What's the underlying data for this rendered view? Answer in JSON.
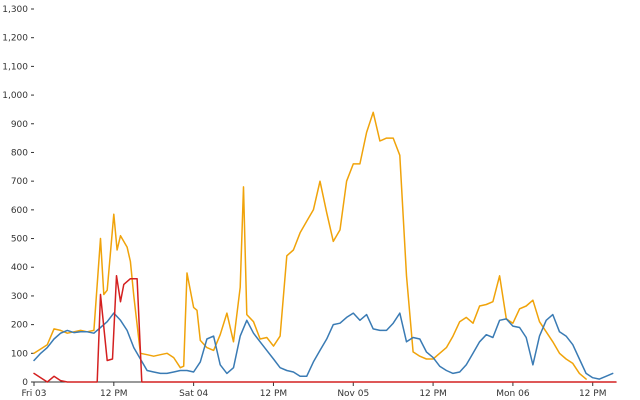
{
  "chart_data": {
    "type": "line",
    "title": "",
    "xlabel": "",
    "ylabel": "",
    "ylim": [
      0,
      1300
    ],
    "yticks": [
      0,
      100,
      200,
      300,
      400,
      500,
      600,
      700,
      800,
      900,
      1000,
      1100,
      1200,
      1300
    ],
    "ytick_labels": [
      "0",
      "100",
      "200",
      "300",
      "400",
      "500",
      "600",
      "700",
      "800",
      "900",
      "1,000",
      "1,100",
      "1,200",
      "1,300"
    ],
    "x_unit": "hours since first x-axis tick label",
    "xlim": [
      0,
      87.5
    ],
    "xticks": [
      0,
      12,
      24,
      36,
      48,
      60,
      72,
      84
    ],
    "xtick_labels": [
      "Fri 03",
      "12 PM",
      "Sat 04",
      "12 PM",
      "Nov 05",
      "12 PM",
      "Mon 06",
      "12 PM"
    ],
    "grid": false,
    "legend": "none",
    "series": [
      {
        "color": "#f0a30a",
        "points": [
          [
            0,
            100
          ],
          [
            1,
            115
          ],
          [
            2,
            130
          ],
          [
            3,
            185
          ],
          [
            4,
            180
          ],
          [
            5,
            170
          ],
          [
            6,
            175
          ],
          [
            7,
            180
          ],
          [
            8,
            175
          ],
          [
            9,
            180
          ],
          [
            10,
            500
          ],
          [
            10.5,
            305
          ],
          [
            11,
            320
          ],
          [
            12,
            585
          ],
          [
            12.5,
            460
          ],
          [
            13,
            510
          ],
          [
            14,
            470
          ],
          [
            14.5,
            420
          ],
          [
            15,
            300
          ],
          [
            16,
            100
          ],
          [
            17,
            95
          ],
          [
            18,
            90
          ],
          [
            19,
            95
          ],
          [
            20,
            100
          ],
          [
            21,
            85
          ],
          [
            22,
            50
          ],
          [
            22.5,
            55
          ],
          [
            23,
            380
          ],
          [
            24,
            260
          ],
          [
            24.5,
            250
          ],
          [
            25,
            145
          ],
          [
            26,
            120
          ],
          [
            27,
            110
          ],
          [
            28,
            165
          ],
          [
            29,
            240
          ],
          [
            30,
            140
          ],
          [
            31,
            330
          ],
          [
            31.5,
            680
          ],
          [
            32,
            235
          ],
          [
            33,
            210
          ],
          [
            34,
            150
          ],
          [
            35,
            155
          ],
          [
            36,
            125
          ],
          [
            37,
            160
          ],
          [
            38,
            440
          ],
          [
            39,
            460
          ],
          [
            40,
            520
          ],
          [
            41,
            560
          ],
          [
            42,
            600
          ],
          [
            43,
            700
          ],
          [
            44,
            590
          ],
          [
            45,
            490
          ],
          [
            46,
            530
          ],
          [
            47,
            700
          ],
          [
            48,
            760
          ],
          [
            49,
            760
          ],
          [
            50,
            870
          ],
          [
            51,
            940
          ],
          [
            52,
            840
          ],
          [
            53,
            850
          ],
          [
            54,
            850
          ],
          [
            55,
            790
          ],
          [
            56,
            370
          ],
          [
            57,
            105
          ],
          [
            58,
            90
          ],
          [
            59,
            80
          ],
          [
            60,
            80
          ],
          [
            61,
            100
          ],
          [
            62,
            120
          ],
          [
            63,
            160
          ],
          [
            64,
            210
          ],
          [
            65,
            225
          ],
          [
            66,
            205
          ],
          [
            67,
            265
          ],
          [
            68,
            270
          ],
          [
            69,
            280
          ],
          [
            70,
            370
          ],
          [
            71,
            220
          ],
          [
            72,
            205
          ],
          [
            73,
            255
          ],
          [
            74,
            265
          ],
          [
            75,
            285
          ],
          [
            76,
            210
          ],
          [
            77,
            175
          ],
          [
            78,
            140
          ],
          [
            79,
            100
          ],
          [
            80,
            80
          ],
          [
            81,
            65
          ],
          [
            82,
            30
          ],
          [
            83,
            10
          ]
        ]
      },
      {
        "color": "#3a7bb4",
        "points": [
          [
            0,
            75
          ],
          [
            1,
            100
          ],
          [
            2,
            120
          ],
          [
            3,
            150
          ],
          [
            4,
            170
          ],
          [
            5,
            180
          ],
          [
            6,
            172
          ],
          [
            7,
            175
          ],
          [
            8,
            175
          ],
          [
            9,
            170
          ],
          [
            10,
            190
          ],
          [
            11,
            210
          ],
          [
            12,
            240
          ],
          [
            13,
            215
          ],
          [
            14,
            180
          ],
          [
            15,
            120
          ],
          [
            16,
            80
          ],
          [
            17,
            40
          ],
          [
            18,
            35
          ],
          [
            19,
            30
          ],
          [
            20,
            30
          ],
          [
            21,
            35
          ],
          [
            22,
            40
          ],
          [
            23,
            40
          ],
          [
            24,
            35
          ],
          [
            25,
            70
          ],
          [
            26,
            150
          ],
          [
            27,
            160
          ],
          [
            28,
            60
          ],
          [
            29,
            30
          ],
          [
            30,
            50
          ],
          [
            31,
            160
          ],
          [
            32,
            215
          ],
          [
            33,
            170
          ],
          [
            34,
            140
          ],
          [
            35,
            110
          ],
          [
            36,
            80
          ],
          [
            37,
            50
          ],
          [
            38,
            40
          ],
          [
            39,
            35
          ],
          [
            40,
            20
          ],
          [
            41,
            20
          ],
          [
            42,
            70
          ],
          [
            43,
            110
          ],
          [
            44,
            150
          ],
          [
            45,
            200
          ],
          [
            46,
            205
          ],
          [
            47,
            225
          ],
          [
            48,
            240
          ],
          [
            49,
            215
          ],
          [
            50,
            235
          ],
          [
            51,
            185
          ],
          [
            52,
            180
          ],
          [
            53,
            180
          ],
          [
            54,
            205
          ],
          [
            55,
            240
          ],
          [
            56,
            140
          ],
          [
            57,
            155
          ],
          [
            58,
            150
          ],
          [
            59,
            105
          ],
          [
            60,
            85
          ],
          [
            61,
            55
          ],
          [
            62,
            40
          ],
          [
            63,
            30
          ],
          [
            64,
            35
          ],
          [
            65,
            60
          ],
          [
            66,
            100
          ],
          [
            67,
            140
          ],
          [
            68,
            165
          ],
          [
            69,
            155
          ],
          [
            70,
            215
          ],
          [
            71,
            220
          ],
          [
            72,
            195
          ],
          [
            73,
            190
          ],
          [
            74,
            155
          ],
          [
            75,
            60
          ],
          [
            76,
            160
          ],
          [
            77,
            215
          ],
          [
            78,
            235
          ],
          [
            79,
            175
          ],
          [
            80,
            160
          ],
          [
            81,
            130
          ],
          [
            82,
            80
          ],
          [
            83,
            30
          ],
          [
            84,
            15
          ],
          [
            85,
            10
          ],
          [
            86,
            20
          ],
          [
            87,
            30
          ]
        ]
      },
      {
        "color": "#d42020",
        "points": [
          [
            0,
            30
          ],
          [
            1,
            15
          ],
          [
            2,
            0
          ],
          [
            3,
            20
          ],
          [
            4,
            5
          ],
          [
            5,
            0
          ],
          [
            6,
            0
          ],
          [
            7,
            0
          ],
          [
            8,
            0
          ],
          [
            9,
            0
          ],
          [
            9.5,
            0
          ],
          [
            10,
            305
          ],
          [
            11,
            75
          ],
          [
            11.8,
            80
          ],
          [
            12.4,
            370
          ],
          [
            13,
            280
          ],
          [
            13.5,
            340
          ],
          [
            14.5,
            360
          ],
          [
            15.5,
            360
          ],
          [
            16.2,
            0
          ],
          [
            20,
            0
          ],
          [
            30,
            0
          ],
          [
            40,
            0
          ],
          [
            50,
            0
          ],
          [
            60,
            0
          ],
          [
            70,
            0
          ],
          [
            80,
            0
          ],
          [
            87.5,
            0
          ]
        ]
      }
    ]
  }
}
